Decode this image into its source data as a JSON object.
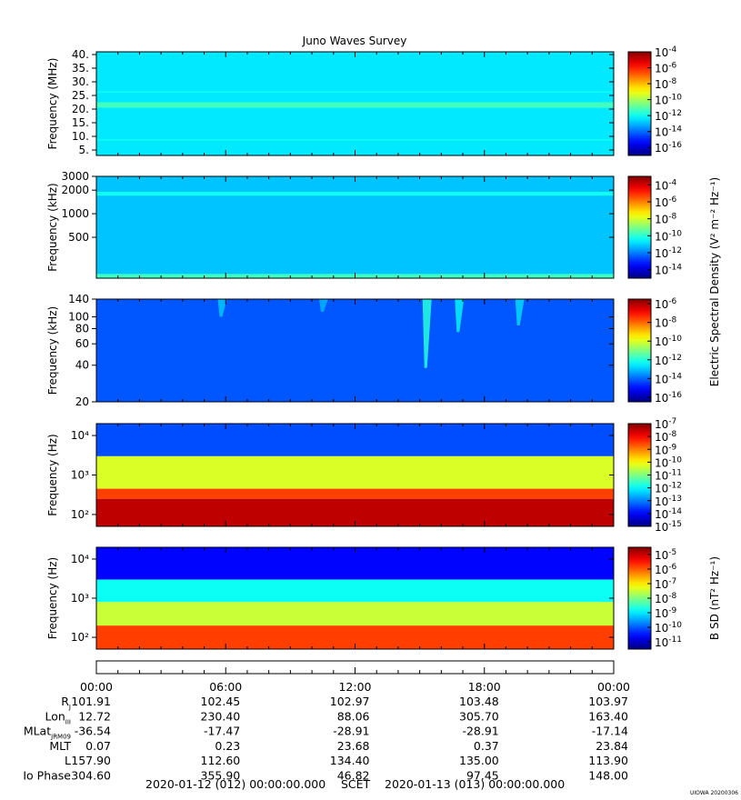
{
  "title": "Juno Waves Survey",
  "stamp": "UIOWA 20200306",
  "chart_data": [
    {
      "type": "heatmap",
      "id": "hfr-high",
      "ylabel": "Frequency (MHz)",
      "yscale": "linear",
      "ylim": [
        3,
        41
      ],
      "yticks": [
        5,
        10,
        15,
        20,
        25,
        30,
        35,
        40
      ],
      "ytick_labels": [
        "5.",
        "10.",
        "15.",
        "20.",
        "25.",
        "30.",
        "35.",
        "40."
      ],
      "cbar_exponents": [
        "-4",
        "-6",
        "-8",
        "-10",
        "-12",
        "-14",
        "-16"
      ],
      "cbar_range_log": [
        -17,
        -4
      ],
      "background_level_log": -12.4,
      "bands": [
        {
          "freq_range": [
            20.5,
            22.5
          ],
          "level_log": -11.3
        },
        {
          "freq_range": [
            8.5,
            9.0
          ],
          "level_log": -12.0
        },
        {
          "freq_range": [
            26.0,
            26.5
          ],
          "level_log": -12.0
        }
      ]
    },
    {
      "type": "heatmap",
      "id": "hfr-low",
      "ylabel": "Frequency (kHz)",
      "yscale": "log",
      "ylim": [
        150,
        3000
      ],
      "yticks": [
        500,
        1000,
        2000,
        3000
      ],
      "ytick_labels": [
        "500",
        "1000",
        "2000",
        "3000"
      ],
      "cbar_exponents": [
        "-4",
        "-6",
        "-8",
        "-10",
        "-12",
        "-14"
      ],
      "cbar_range_log": [
        -15,
        -3
      ],
      "background_level_log": -11.2,
      "bands": [
        {
          "freq_range": [
            1700,
            1900
          ],
          "level_log": -10.3
        },
        {
          "freq_range": [
            150,
            170
          ],
          "level_log": -9.8
        }
      ]
    },
    {
      "type": "heatmap",
      "id": "lfr-high",
      "ylabel": "Frequency (kHz)",
      "yscale": "log",
      "ylim": [
        20,
        140
      ],
      "yticks": [
        20,
        40,
        60,
        80,
        100,
        140
      ],
      "ytick_labels": [
        "20",
        "40",
        "60",
        "80",
        "100",
        "140"
      ],
      "cbar_exponents": [
        "-6",
        "-8",
        "-10",
        "-12",
        "-14",
        "-16"
      ],
      "cbar_range_log": [
        -16.5,
        -5.5
      ],
      "background_level_log": -14.2,
      "bursts": [
        {
          "t_hours": 15.3,
          "freq_range": [
            38,
            140
          ],
          "level_log": -12.0
        },
        {
          "t_hours": 16.8,
          "freq_range": [
            75,
            140
          ],
          "level_log": -12.5
        },
        {
          "t_hours": 19.6,
          "freq_range": [
            85,
            140
          ],
          "level_log": -12.8
        },
        {
          "t_hours": 5.8,
          "freq_range": [
            100,
            140
          ],
          "level_log": -13.0
        },
        {
          "t_hours": 10.5,
          "freq_range": [
            110,
            140
          ],
          "level_log": -13.2
        }
      ]
    },
    {
      "type": "heatmap",
      "id": "lfr-e",
      "ylabel": "Frequency (Hz)",
      "yscale": "log",
      "ylim": [
        50,
        20000
      ],
      "yticks": [
        100,
        1000,
        10000
      ],
      "ytick_labels": [
        "10²",
        "10³",
        "10⁴"
      ],
      "cbar_exponents": [
        "-7",
        "-8",
        "-9",
        "-10",
        "-11",
        "-12",
        "-13",
        "-14",
        "-15"
      ],
      "cbar_range_log": [
        -15,
        -7
      ],
      "layers": [
        {
          "freq_range": [
            50,
            250
          ],
          "level_log": -7.5
        },
        {
          "freq_range": [
            250,
            450
          ],
          "level_log": -8.5
        },
        {
          "freq_range": [
            450,
            3000
          ],
          "level_log": -10.3
        },
        {
          "freq_range": [
            3000,
            20000
          ],
          "level_log": -13.4
        }
      ]
    },
    {
      "type": "heatmap",
      "id": "lfr-b",
      "ylabel": "Frequency (Hz)",
      "yscale": "log",
      "ylim": [
        50,
        20000
      ],
      "yticks": [
        100,
        1000,
        10000
      ],
      "ytick_labels": [
        "10²",
        "10³",
        "10⁴"
      ],
      "cbar_exponents": [
        "-5",
        "-6",
        "-7",
        "-8",
        "-9",
        "-10",
        "-11"
      ],
      "cbar_range_log": [
        -11.5,
        -4.5
      ],
      "layers": [
        {
          "freq_range": [
            50,
            200
          ],
          "level_log": -5.8
        },
        {
          "freq_range": [
            200,
            800
          ],
          "level_log": -7.5
        },
        {
          "freq_range": [
            800,
            3000
          ],
          "level_log": -8.8
        },
        {
          "freq_range": [
            3000,
            20000
          ],
          "level_log": -10.6
        }
      ]
    }
  ],
  "cbar_labels": {
    "e_spectral": "Electric Spectral Density (V² m⁻² Hz⁻¹)",
    "b_spectral": "B SD (nT² Hz⁻¹)"
  },
  "cbar_base": "10",
  "time_axis": {
    "tick_hours": [
      0,
      6,
      12,
      18,
      24
    ],
    "tick_labels": [
      "00:00",
      "06:00",
      "12:00",
      "18:00",
      "00:00"
    ],
    "minor_step_hours": 1
  },
  "ephemeris": {
    "rows": [
      {
        "label": "R",
        "label_sub": "J",
        "values": [
          "101.91",
          "102.45",
          "102.97",
          "103.48",
          "103.97"
        ]
      },
      {
        "label": "Lon",
        "label_sub": "III",
        "values": [
          "12.72",
          "230.40",
          "88.06",
          "305.70",
          "163.40"
        ]
      },
      {
        "label": "MLat",
        "label_sub": "JRM09",
        "values": [
          "-36.54",
          "-17.47",
          "-28.91",
          "-28.91",
          "-17.14"
        ]
      },
      {
        "label": "MLT",
        "label_sub": "",
        "values": [
          "0.07",
          "0.23",
          "23.68",
          "0.37",
          "23.84"
        ]
      },
      {
        "label": "L",
        "label_sub": "",
        "values": [
          "157.90",
          "112.60",
          "134.40",
          "135.00",
          "113.90"
        ]
      },
      {
        "label": "Io Phase",
        "label_sub": "",
        "values": [
          "304.60",
          "355.90",
          "46.82",
          "97.45",
          "148.00"
        ]
      }
    ]
  },
  "footer": {
    "start": "2020-01-12 (012) 00:00:00.000",
    "scet": "SCET",
    "end": "2020-01-13 (013) 00:00:00.000"
  }
}
